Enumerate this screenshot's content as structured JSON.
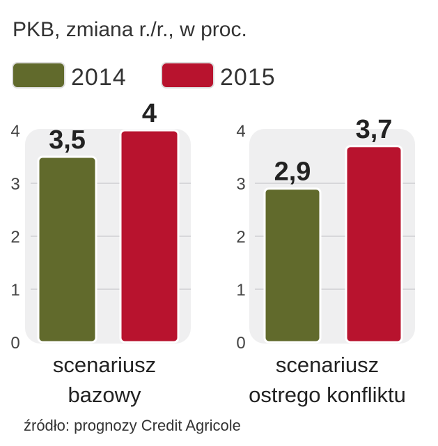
{
  "chart_data": {
    "type": "bar",
    "title": "PKB, zmiana r./r., w proc.",
    "legend": [
      {
        "name": "2014",
        "color": "#616a2c"
      },
      {
        "name": "2015",
        "color": "#b8132e"
      }
    ],
    "legend_placement": "top-left",
    "ylim": [
      0,
      4
    ],
    "yticks": [
      "0",
      "1",
      "2",
      "3",
      "4"
    ],
    "grid": true,
    "groups": [
      {
        "label_lines": [
          "scenariusz",
          "bazowy"
        ],
        "values": [
          3.5,
          4
        ],
        "labels": [
          "3,5",
          "4"
        ]
      },
      {
        "label_lines": [
          "scenariusz",
          "ostrego konfliktu"
        ],
        "values": [
          2.9,
          3.7
        ],
        "labels": [
          "2,9",
          "3,7"
        ]
      }
    ],
    "source": "źródło: prognozy Credit Agricole"
  }
}
